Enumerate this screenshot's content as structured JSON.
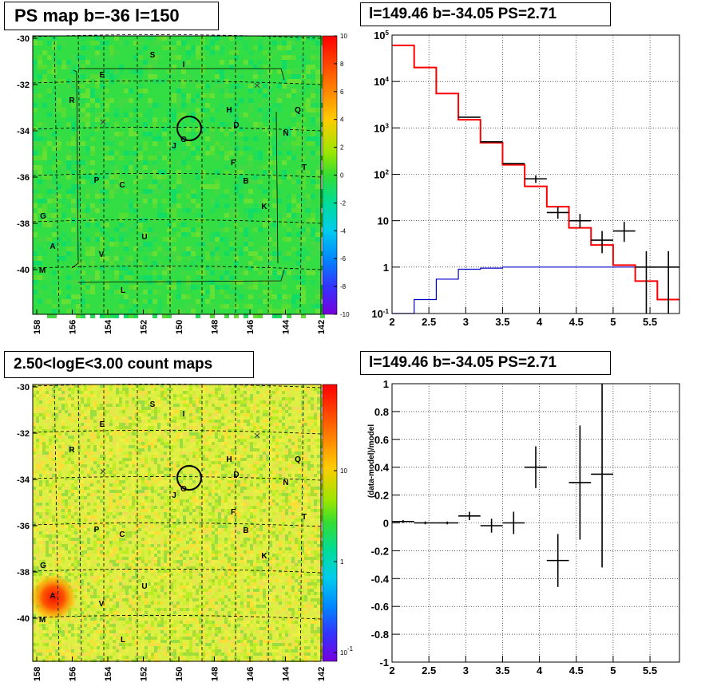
{
  "panels": {
    "ps_map": {
      "title": "PS map b=-36 l=150"
    },
    "spectrum": {
      "title": "l=149.46 b=-34.05 PS=2.71"
    },
    "count_map": {
      "title": "2.50<logE<3.00 count maps"
    },
    "residual": {
      "title": "l=149.46 b=-34.05 PS=2.71"
    }
  },
  "chart_data": [
    {
      "type": "heatmap",
      "title": "PS map b=-36 l=150",
      "x_ticks": [
        "158",
        "156",
        "154",
        "152",
        "150",
        "148",
        "146",
        "144",
        "142"
      ],
      "y_ticks": [
        "-30",
        "-32",
        "-34",
        "-36",
        "-38",
        "-40"
      ],
      "colorbar": {
        "ticks": [
          "10",
          "8",
          "6",
          "4",
          "2",
          "0",
          "-2",
          "-4",
          "-6",
          "-8",
          "-10"
        ],
        "range": [
          -10,
          10
        ]
      },
      "source_labels": [
        "S",
        "I",
        "E",
        "R",
        "H",
        "Q",
        "D",
        "N",
        "J",
        "O",
        "F",
        "T",
        "P",
        "C",
        "B",
        "G",
        "K",
        "U",
        "A",
        "V",
        "M",
        "L"
      ],
      "circle": {
        "l": 149.46,
        "b": -34.05
      }
    },
    {
      "type": "line",
      "title": "l=149.46 b=-34.05 PS=2.71",
      "xlim": [
        2,
        5.9
      ],
      "ylim": [
        0.1,
        100000
      ],
      "y_scale": "log",
      "x_ticks": [
        "2",
        "2.5",
        "3",
        "3.5",
        "4",
        "4.5",
        "5",
        "5.5"
      ],
      "y_ticks": [
        "10^5",
        "10^4",
        "10^3",
        "10^2",
        "10",
        "1",
        "10^-1"
      ],
      "bin_edges": [
        2.0,
        2.3,
        2.6,
        2.9,
        3.2,
        3.5,
        3.8,
        4.1,
        4.4,
        4.7,
        5.0,
        5.3,
        5.6,
        5.9
      ],
      "series": [
        {
          "role": "model",
          "color": "#ff0000",
          "values": [
            60000,
            20000,
            5500,
            1500,
            480,
            160,
            55,
            20,
            7,
            3,
            1.1,
            0.5,
            0.2
          ]
        },
        {
          "role": "background",
          "color": "#0000cc",
          "values": [
            0.1,
            0.2,
            0.55,
            0.9,
            0.95,
            1.0,
            1.0,
            1.0,
            1.0,
            1.0,
            1.0,
            1.0,
            1.0
          ]
        },
        {
          "role": "data",
          "color": "#000000",
          "points": [
            {
              "x": 3.05,
              "y": 1700
            },
            {
              "x": 3.35,
              "y": 500
            },
            {
              "x": 3.65,
              "y": 170
            },
            {
              "x": 3.95,
              "y": 80,
              "ylo": 65,
              "yhi": 95
            },
            {
              "x": 4.25,
              "y": 15,
              "ylo": 11,
              "yhi": 20
            },
            {
              "x": 4.55,
              "y": 10,
              "ylo": 7,
              "yhi": 14
            },
            {
              "x": 4.85,
              "y": 3.8,
              "ylo": 2.0,
              "yhi": 6.0
            },
            {
              "x": 5.15,
              "y": 6,
              "ylo": 3.5,
              "yhi": 9.5
            },
            {
              "x": 5.45,
              "y": 1,
              "ylo": 0.1,
              "yhi": 2.2
            },
            {
              "x": 5.75,
              "y": 1,
              "ylo": 0.1,
              "yhi": 2.2
            }
          ]
        }
      ]
    },
    {
      "type": "heatmap",
      "title": "2.50<logE<3.00 count maps",
      "x_ticks": [
        "158",
        "156",
        "154",
        "152",
        "150",
        "148",
        "146",
        "144",
        "142"
      ],
      "y_ticks": [
        "-30",
        "-32",
        "-34",
        "-36",
        "-38",
        "-40"
      ],
      "colorbar": {
        "scale": "log",
        "ticks": [
          "10",
          "1",
          "10^-1"
        ]
      },
      "source_labels": [
        "S",
        "I",
        "E",
        "R",
        "H",
        "Q",
        "D",
        "N",
        "J",
        "O",
        "F",
        "T",
        "P",
        "C",
        "B",
        "G",
        "K",
        "U",
        "A",
        "V",
        "M",
        "L"
      ],
      "hotspot_label": "A"
    },
    {
      "type": "scatter",
      "title": "l=149.46 b=-34.05 PS=2.71",
      "ylabel": "(data-model)/model",
      "xlim": [
        2,
        5.9
      ],
      "ylim": [
        -1,
        1
      ],
      "x_ticks": [
        "2",
        "2.5",
        "3",
        "3.5",
        "4",
        "4.5",
        "5",
        "5.5"
      ],
      "y_ticks": [
        "1",
        "0.8",
        "0.6",
        "0.4",
        "0.2",
        "0",
        "-0.2",
        "-0.4",
        "-0.6",
        "-0.8",
        "-1"
      ],
      "points": [
        {
          "x": 2.15,
          "y": 0.01,
          "xerr": 0.15,
          "yerr": 0.01
        },
        {
          "x": 2.45,
          "y": 0.0,
          "xerr": 0.15,
          "yerr": 0.01
        },
        {
          "x": 2.75,
          "y": 0.0,
          "xerr": 0.15,
          "yerr": 0.01
        },
        {
          "x": 3.05,
          "y": 0.05,
          "xerr": 0.15,
          "yerr": 0.03
        },
        {
          "x": 3.35,
          "y": -0.02,
          "xerr": 0.15,
          "yerr": 0.05
        },
        {
          "x": 3.65,
          "y": 0.0,
          "xerr": 0.15,
          "yerr": 0.08
        },
        {
          "x": 3.95,
          "y": 0.4,
          "xerr": 0.15,
          "yerr": 0.15
        },
        {
          "x": 4.25,
          "y": -0.27,
          "xerr": 0.15,
          "yerr": 0.19
        },
        {
          "x": 4.55,
          "y": 0.29,
          "xerr": 0.15,
          "yerr": 0.41
        },
        {
          "x": 4.85,
          "y": 0.35,
          "xerr": 0.15,
          "yerr": 0.67
        }
      ]
    }
  ]
}
